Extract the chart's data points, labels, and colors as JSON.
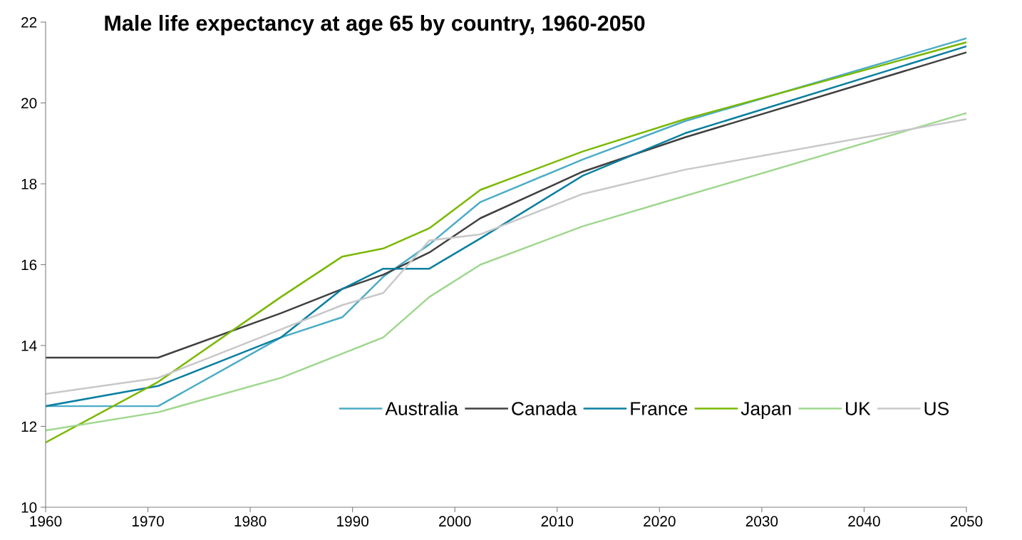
{
  "chart_data": {
    "type": "line",
    "title": "Male life expectancy at age 65 by country, 1960-2050",
    "x": [
      1960,
      1971,
      1983,
      1989,
      1993,
      1997.5,
      2002.5,
      2012.5,
      2022.5,
      2050
    ],
    "series": [
      {
        "name": "Australia",
        "color": "#4bacc6",
        "values": [
          12.5,
          12.5,
          14.2,
          14.7,
          15.7,
          16.5,
          17.55,
          18.6,
          19.55,
          21.6
        ]
      },
      {
        "name": "Canada",
        "color": "#404040",
        "values": [
          13.7,
          13.7,
          14.8,
          15.4,
          15.75,
          16.3,
          17.15,
          18.3,
          19.15,
          21.25
        ]
      },
      {
        "name": "France",
        "color": "#0a7fa0",
        "values": [
          12.5,
          13.0,
          14.2,
          15.4,
          15.9,
          15.9,
          16.65,
          18.2,
          19.25,
          21.4
        ]
      },
      {
        "name": "Japan",
        "color": "#7ab800",
        "values": [
          11.6,
          13.1,
          15.2,
          16.2,
          16.4,
          16.9,
          17.85,
          18.8,
          19.6,
          21.5
        ]
      },
      {
        "name": "UK",
        "color": "#9ed78e",
        "values": [
          11.9,
          12.35,
          13.2,
          13.8,
          14.2,
          15.2,
          16.0,
          16.95,
          17.7,
          19.75
        ]
      },
      {
        "name": "US",
        "color": "#c8c8c8",
        "values": [
          12.8,
          13.2,
          14.4,
          15.0,
          15.3,
          16.6,
          16.75,
          17.75,
          18.35,
          19.6
        ]
      }
    ],
    "xlim": [
      1960,
      2050
    ],
    "xticks": [
      1960,
      1970,
      1980,
      1990,
      2000,
      2010,
      2020,
      2030,
      2040,
      2050
    ],
    "ylim": [
      10,
      22
    ],
    "yticks": [
      10,
      12,
      14,
      16,
      18,
      20,
      22
    ],
    "grid": false,
    "legend": "right",
    "marker": "none",
    "line_style": "solid"
  }
}
